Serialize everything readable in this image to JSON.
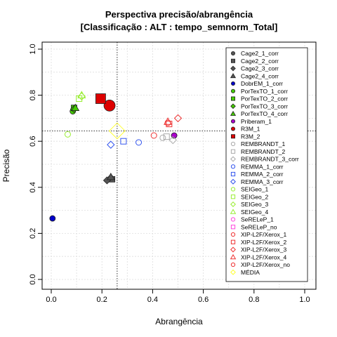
{
  "chart_data": {
    "type": "scatter",
    "title": "Perspectiva precisão/abrangência",
    "subtitle": "[Classificação : ALT : tempo_semnorm_Total]",
    "xlabel": "Abrangência",
    "ylabel": "Precisão",
    "xlim": [
      0,
      1
    ],
    "ylim": [
      0,
      1
    ],
    "xticks": [
      "0.0",
      "0.2",
      "0.4",
      "0.6",
      "0.8",
      "1.0"
    ],
    "yticks": [
      "0.0",
      "0.2",
      "0.4",
      "0.6",
      "0.8",
      "1.0"
    ],
    "grid": true,
    "legend_position": "right",
    "reference_lines": {
      "x": 0.26,
      "y": 0.645
    },
    "series": [
      {
        "name": "Cage2_1_corr",
        "shape": "circle",
        "color": "#555555",
        "filled": true,
        "points": [
          [
            0.235,
            0.44
          ]
        ]
      },
      {
        "name": "Cage2_2_corr",
        "shape": "square",
        "color": "#555555",
        "filled": true,
        "points": [
          [
            0.24,
            0.435
          ]
        ]
      },
      {
        "name": "Cage2_3_corr",
        "shape": "diamond",
        "color": "#555555",
        "filled": true,
        "points": [
          [
            0.22,
            0.43
          ]
        ]
      },
      {
        "name": "Cage2_4_corr",
        "shape": "triangle",
        "color": "#555555",
        "filled": true,
        "points": [
          [
            0.235,
            0.445
          ]
        ]
      },
      {
        "name": "DobrEM_1_corr",
        "shape": "circle",
        "color": "#0000cc",
        "filled": true,
        "points": [
          [
            0.005,
            0.265
          ]
        ]
      },
      {
        "name": "PorTexTO_1_corr",
        "shape": "circle",
        "color": "#44cc00",
        "filled": true,
        "points": [
          [
            0.085,
            0.73
          ]
        ]
      },
      {
        "name": "PorTexTO_2_corr",
        "shape": "square",
        "color": "#44cc00",
        "filled": true,
        "points": [
          [
            0.09,
            0.745
          ]
        ]
      },
      {
        "name": "PorTexTO_3_corr",
        "shape": "diamond",
        "color": "#44cc00",
        "filled": true,
        "points": [
          [
            0.09,
            0.74
          ]
        ]
      },
      {
        "name": "PorTexTO_4_corr",
        "shape": "triangle",
        "color": "#44cc00",
        "filled": true,
        "points": [
          [
            0.095,
            0.745
          ]
        ]
      },
      {
        "name": "Priberam_1",
        "shape": "circle",
        "color": "#aa00cc",
        "filled": true,
        "points": [
          [
            0.485,
            0.625
          ]
        ]
      },
      {
        "name": "R3M_1",
        "shape": "circle",
        "color": "#dd0000",
        "filled": true,
        "points": [
          [
            0.23,
            0.755
          ]
        ]
      },
      {
        "name": "R3M_2",
        "shape": "square",
        "color": "#dd0000",
        "filled": true,
        "points": [
          [
            0.195,
            0.785
          ]
        ]
      },
      {
        "name": "REMBRANDT_1",
        "shape": "circle",
        "color": "#aaaaaa",
        "filled": false,
        "points": [
          [
            0.44,
            0.615
          ]
        ]
      },
      {
        "name": "REMBRANDT_2",
        "shape": "square",
        "color": "#aaaaaa",
        "filled": false,
        "points": [
          [
            0.455,
            0.62
          ]
        ]
      },
      {
        "name": "REMBRANDT_3_corr",
        "shape": "diamond",
        "color": "#aaaaaa",
        "filled": false,
        "points": [
          [
            0.48,
            0.605
          ]
        ]
      },
      {
        "name": "REMMA_1_corr",
        "shape": "circle",
        "color": "#3355ee",
        "filled": false,
        "points": [
          [
            0.345,
            0.595
          ]
        ]
      },
      {
        "name": "REMMA_2_corr",
        "shape": "square",
        "color": "#3355ee",
        "filled": false,
        "points": [
          [
            0.285,
            0.6
          ]
        ]
      },
      {
        "name": "REMMA_3_corr",
        "shape": "diamond",
        "color": "#3355ee",
        "filled": false,
        "points": [
          [
            0.235,
            0.585
          ]
        ]
      },
      {
        "name": "SEIGeo_1",
        "shape": "circle",
        "color": "#99ee33",
        "filled": false,
        "points": [
          [
            0.065,
            0.63
          ]
        ]
      },
      {
        "name": "SEIGeo_2",
        "shape": "square",
        "color": "#99ee33",
        "filled": false,
        "points": [
          [
            0.11,
            0.785
          ]
        ]
      },
      {
        "name": "SEIGeo_3",
        "shape": "diamond",
        "color": "#99ee33",
        "filled": false,
        "points": [
          [
            0.12,
            0.795
          ]
        ]
      },
      {
        "name": "SEIGeo_4",
        "shape": "triangle",
        "color": "#99ee33",
        "filled": false,
        "points": [
          [
            0.12,
            0.8
          ]
        ]
      },
      {
        "name": "SeRELeP_1",
        "shape": "circle",
        "color": "#ff44dd",
        "filled": false,
        "points": []
      },
      {
        "name": "SeRELeP_no",
        "shape": "square",
        "color": "#ff44dd",
        "filled": false,
        "points": []
      },
      {
        "name": "XIP-L2F/Xerox_1",
        "shape": "circle",
        "color": "#ee3333",
        "filled": false,
        "points": [
          [
            0.405,
            0.625
          ]
        ]
      },
      {
        "name": "XIP-L2F/Xerox_2",
        "shape": "square",
        "color": "#ee3333",
        "filled": false,
        "points": [
          [
            0.465,
            0.675
          ]
        ]
      },
      {
        "name": "XIP-L2F/Xerox_3",
        "shape": "diamond",
        "color": "#ee3333",
        "filled": false,
        "points": [
          [
            0.5,
            0.7
          ]
        ]
      },
      {
        "name": "XIP-L2F/Xerox_4",
        "shape": "triangle",
        "color": "#ee3333",
        "filled": false,
        "points": [
          [
            0.46,
            0.685
          ]
        ]
      },
      {
        "name": "XIP-L2F/Xerox_no",
        "shape": "circle",
        "color": "#ee3333",
        "filled": false,
        "points": [
          [
            0.46,
            0.68
          ]
        ]
      },
      {
        "name": "MÉDIA",
        "shape": "diamond",
        "color": "#ffff33",
        "filled": false,
        "points": [
          [
            0.26,
            0.645
          ]
        ]
      }
    ]
  }
}
